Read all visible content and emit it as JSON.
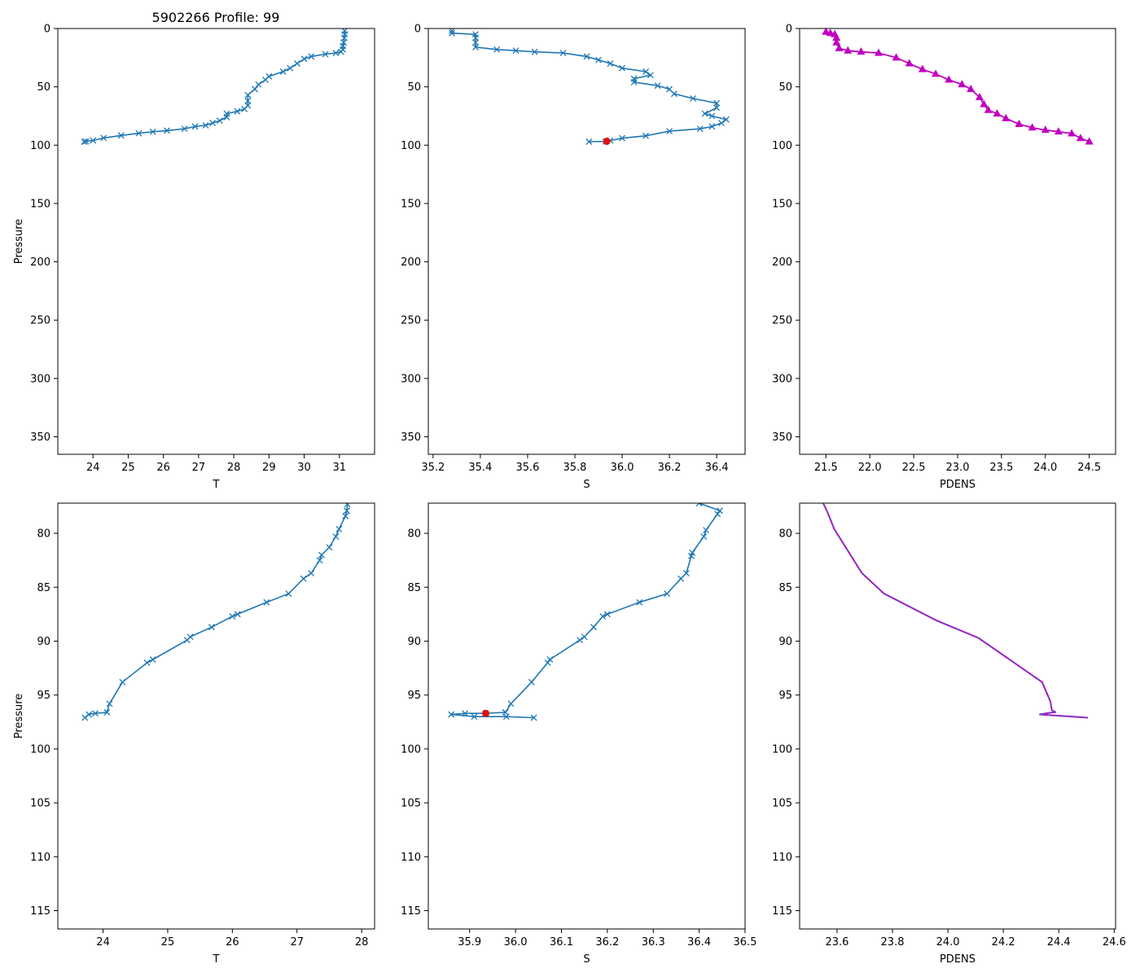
{
  "figure_title": "5902266 Profile: 99",
  "colors": {
    "series": "#1f77b4",
    "pdens": "#c000c0",
    "pdens_dash": "#1f77b4",
    "highlight": "#e01010"
  },
  "chart_data": [
    {
      "type": "line",
      "panel": "top-left",
      "title": "5902266 Profile: 99",
      "xlabel": "T",
      "ylabel": "Pressure",
      "xlim": [
        23.0,
        32.0
      ],
      "ylim": [
        365,
        0
      ],
      "y_inverted": true,
      "xticks": [
        24,
        25,
        26,
        27,
        28,
        29,
        30,
        31
      ],
      "yticks": [
        0,
        50,
        100,
        150,
        200,
        250,
        300,
        350
      ],
      "marker": "x",
      "series": [
        {
          "name": "T",
          "x": [
            31.15,
            31.15,
            31.14,
            31.12,
            31.1,
            31.1,
            31.05,
            30.9,
            30.6,
            30.2,
            30.0,
            29.8,
            29.6,
            29.4,
            29.0,
            28.9,
            28.7,
            28.6,
            28.4,
            28.4,
            28.4,
            28.3,
            28.1,
            27.8,
            27.8,
            27.6,
            27.4,
            27.2,
            26.9,
            26.6,
            26.1,
            25.7,
            25.3,
            24.8,
            24.3,
            24.0,
            23.8,
            23.75
          ],
          "y": [
            2,
            5,
            8,
            12,
            15,
            18,
            20,
            21,
            22,
            24,
            26,
            30,
            34,
            37,
            41,
            44,
            48,
            52,
            57,
            62,
            66,
            69,
            71,
            73,
            76,
            79,
            81,
            83,
            84,
            86,
            87.5,
            88.5,
            89.8,
            91.7,
            93.8,
            96,
            96.8,
            97.1
          ]
        }
      ],
      "highlight": null
    },
    {
      "type": "line",
      "panel": "top-middle",
      "title": "",
      "xlabel": "S",
      "ylabel": "",
      "xlim": [
        35.18,
        36.52
      ],
      "ylim": [
        365,
        0
      ],
      "y_inverted": true,
      "xticks": [
        35.2,
        35.4,
        35.6,
        35.8,
        36.0,
        36.2,
        36.4
      ],
      "yticks": [
        0,
        50,
        100,
        150,
        200,
        250,
        300,
        350
      ],
      "marker": "x",
      "series": [
        {
          "name": "S",
          "x": [
            35.28,
            35.28,
            35.38,
            35.38,
            35.38,
            35.38,
            35.47,
            35.55,
            35.63,
            35.75,
            35.85,
            35.9,
            35.95,
            36.0,
            36.1,
            36.12,
            36.05,
            36.05,
            36.15,
            36.2,
            36.22,
            36.3,
            36.4,
            36.4,
            36.35,
            36.38,
            36.44,
            36.42,
            36.38,
            36.33,
            36.2,
            36.1,
            36.0,
            35.95,
            35.93,
            35.86
          ],
          "y": [
            2,
            4,
            5,
            8,
            12,
            16,
            18,
            19,
            20,
            21,
            24,
            27,
            30,
            34,
            37,
            40,
            43,
            46,
            49,
            52,
            56,
            60,
            64,
            68,
            73,
            75,
            78,
            81,
            84,
            86,
            88,
            92,
            94,
            96,
            96.8,
            97
          ]
        }
      ],
      "highlight": {
        "x": 35.935,
        "y": 96.7
      }
    },
    {
      "type": "line",
      "panel": "top-right",
      "title": "",
      "xlabel": "PDENS",
      "ylabel": "",
      "xlim": [
        21.2,
        24.8
      ],
      "ylim": [
        365,
        0
      ],
      "y_inverted": true,
      "xticks": [
        21.5,
        22.0,
        22.5,
        23.0,
        23.5,
        24.0,
        24.5
      ],
      "yticks": [
        0,
        50,
        100,
        150,
        200,
        250,
        300,
        350
      ],
      "marker": "triangle",
      "series": [
        {
          "name": "PDENS",
          "x": [
            21.5,
            21.55,
            21.6,
            21.62,
            21.62,
            21.65,
            21.75,
            21.9,
            22.1,
            22.3,
            22.45,
            22.6,
            22.75,
            22.9,
            23.05,
            23.15,
            23.25,
            23.3,
            23.35,
            23.45,
            23.55,
            23.7,
            23.85,
            24.0,
            24.15,
            24.3,
            24.4,
            24.5
          ],
          "y": [
            3,
            4,
            5,
            8,
            12,
            17,
            19,
            20,
            21,
            25,
            30,
            35,
            39,
            44,
            48,
            52,
            59,
            65,
            70,
            73,
            77,
            82,
            85,
            87,
            88.5,
            90,
            94,
            97
          ]
        }
      ],
      "highlight": null
    },
    {
      "type": "line",
      "panel": "bottom-left",
      "title": "",
      "xlabel": "T",
      "ylabel": "Pressure",
      "xlim": [
        23.3,
        28.2
      ],
      "ylim": [
        116.7,
        77.2
      ],
      "y_inverted": true,
      "xticks": [
        24,
        25,
        26,
        27,
        28
      ],
      "yticks": [
        80,
        85,
        90,
        95,
        100,
        105,
        110,
        115
      ],
      "marker": "x",
      "series": [
        {
          "name": "T",
          "x": [
            27.78,
            27.77,
            27.75,
            27.65,
            27.6,
            27.5,
            27.38,
            27.35,
            27.22,
            27.1,
            26.87,
            26.53,
            26.08,
            26.0,
            25.68,
            25.35,
            25.3,
            24.77,
            24.68,
            24.3,
            24.1,
            24.06,
            23.88,
            23.78,
            23.72
          ],
          "y": [
            77.3,
            77.9,
            78.4,
            79.6,
            80.3,
            81.3,
            82.0,
            82.5,
            83.7,
            84.2,
            85.6,
            86.4,
            87.5,
            87.7,
            88.7,
            89.6,
            89.9,
            91.7,
            92.0,
            93.8,
            95.8,
            96.6,
            96.7,
            96.8,
            97.1
          ]
        }
      ],
      "highlight": null
    },
    {
      "type": "line",
      "panel": "bottom-middle",
      "title": "",
      "xlabel": "S",
      "ylabel": "",
      "xlim": [
        35.81,
        36.5
      ],
      "ylim": [
        116.7,
        77.2
      ],
      "y_inverted": true,
      "xticks": [
        35.9,
        36.0,
        36.1,
        36.2,
        36.3,
        36.4,
        36.5
      ],
      "yticks": [
        80,
        85,
        90,
        95,
        100,
        105,
        110,
        115
      ],
      "marker": "x",
      "series": [
        {
          "name": "S",
          "x": [
            36.4,
            36.445,
            36.44,
            36.415,
            36.41,
            36.385,
            36.383,
            36.372,
            36.36,
            36.33,
            36.27,
            36.2,
            36.19,
            36.17,
            36.15,
            36.14,
            36.075,
            36.07,
            36.035,
            35.99,
            35.978,
            35.935,
            35.89,
            35.86,
            35.91,
            35.98,
            36.04
          ],
          "y": [
            77.2,
            77.9,
            78.2,
            79.7,
            80.3,
            81.8,
            82.1,
            83.7,
            84.2,
            85.6,
            86.4,
            87.5,
            87.7,
            88.7,
            89.6,
            89.9,
            91.7,
            92.0,
            93.8,
            95.8,
            96.6,
            96.7,
            96.7,
            96.8,
            97.0,
            97.0,
            97.1
          ]
        }
      ],
      "highlight": {
        "x": 35.935,
        "y": 96.7
      }
    },
    {
      "type": "line",
      "panel": "bottom-right",
      "title": "",
      "xlabel": "PDENS",
      "ylabel": "",
      "xlim": [
        23.465,
        24.605
      ],
      "ylim": [
        116.7,
        77.2
      ],
      "y_inverted": true,
      "xticks": [
        23.6,
        23.8,
        24.0,
        24.2,
        24.4,
        24.6
      ],
      "yticks": [
        80,
        85,
        90,
        95,
        100,
        105,
        110,
        115
      ],
      "marker": "none",
      "series": [
        {
          "name": "PDENS",
          "x": [
            23.55,
            23.565,
            23.59,
            23.69,
            23.77,
            23.96,
            24.11,
            24.34,
            24.37,
            24.375,
            24.39,
            24.38,
            24.33,
            24.505
          ],
          "y": [
            77.2,
            78.0,
            79.6,
            83.7,
            85.6,
            88.1,
            89.7,
            93.8,
            95.6,
            96.4,
            96.6,
            96.6,
            96.8,
            97.1
          ]
        }
      ],
      "highlight": null
    }
  ]
}
